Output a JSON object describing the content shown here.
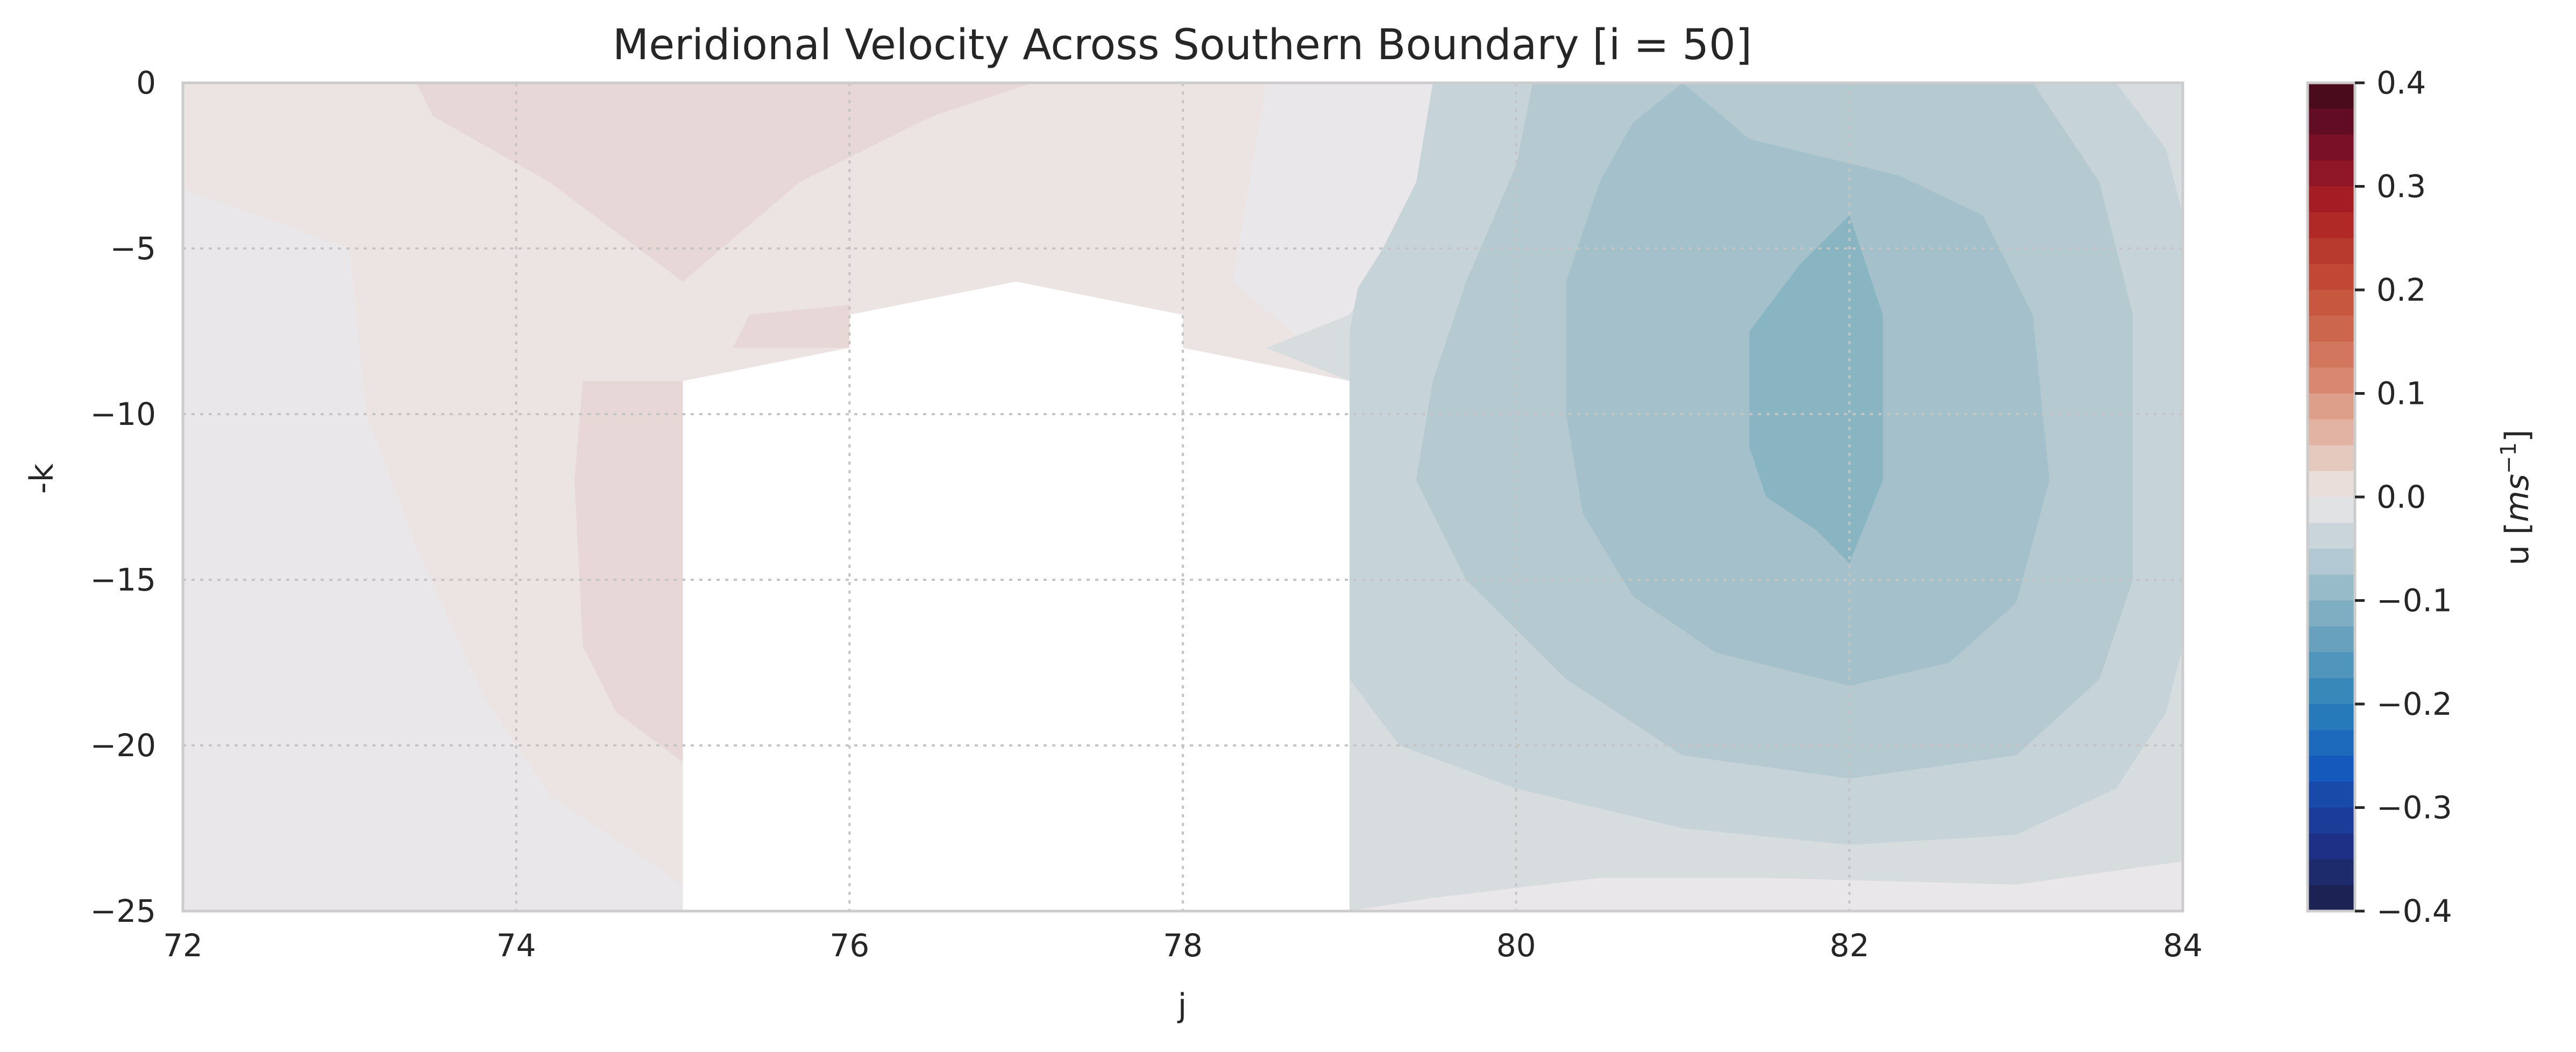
{
  "chart_data": {
    "type": "heatmap",
    "subtype": "filled-contour",
    "title": "Meridional Velocity Across Southern Boundary [i = 50]",
    "xlabel": "j",
    "ylabel": "-k",
    "xlim": [
      72,
      84
    ],
    "ylim": [
      -25,
      0
    ],
    "xticks": [
      72,
      74,
      76,
      78,
      80,
      82,
      84
    ],
    "xtick_labels": [
      "72",
      "74",
      "76",
      "78",
      "80",
      "82",
      "84"
    ],
    "yticks": [
      0,
      -5,
      -10,
      -15,
      -20,
      -25
    ],
    "ytick_labels": [
      "0",
      "−5",
      "−10",
      "−15",
      "−20",
      "−25"
    ],
    "grid": true,
    "colormap": "balance (diverging blue-white-red)",
    "colorbar": {
      "label": "u [ms⁻¹]",
      "label_main": "u [",
      "label_unit": "ms",
      "label_exp": "−1",
      "label_close": "]",
      "vmin": -0.4,
      "vmax": 0.4,
      "levels": 32,
      "ticks": [
        0.4,
        0.3,
        0.2,
        0.1,
        0.0,
        -0.1,
        -0.2,
        -0.3,
        -0.4
      ],
      "tick_labels": [
        "0.4",
        "0.3",
        "0.2",
        "0.1",
        "0.0",
        "−0.1",
        "−0.2",
        "−0.3",
        "−0.4"
      ]
    },
    "regions": [
      {
        "description": "background",
        "value": 0.0
      },
      {
        "description": "positive lobe west (j 73-75)",
        "value": 0.01
      },
      {
        "description": "positive core top (j 74-76)",
        "value": 0.03
      },
      {
        "description": "land mask",
        "value": null,
        "j": [
          75,
          79
        ],
        "top_k": [
          -9,
          -8,
          -6,
          -7,
          -9
        ]
      },
      {
        "description": "negative lobe outer (j 79-84)",
        "value": -0.015
      },
      {
        "description": "negative lobe level 2",
        "value": -0.04
      },
      {
        "description": "negative lobe level 3",
        "value": -0.06
      },
      {
        "description": "negative lobe level 4",
        "value": -0.08
      },
      {
        "description": "negative core (j ~82, k -4..-14)",
        "value": -0.1
      }
    ],
    "colors": {
      "background": "#e9e7e9",
      "pos1": "#ece3e3",
      "pos2": "#e7d7d6",
      "neg1": "#d7dcdf",
      "neg2": "#c6d3d8",
      "neg3": "#b5c9d0",
      "neg4": "#a3c0cb",
      "neg5": "#89b5c2",
      "land": "#ffffff"
    }
  }
}
